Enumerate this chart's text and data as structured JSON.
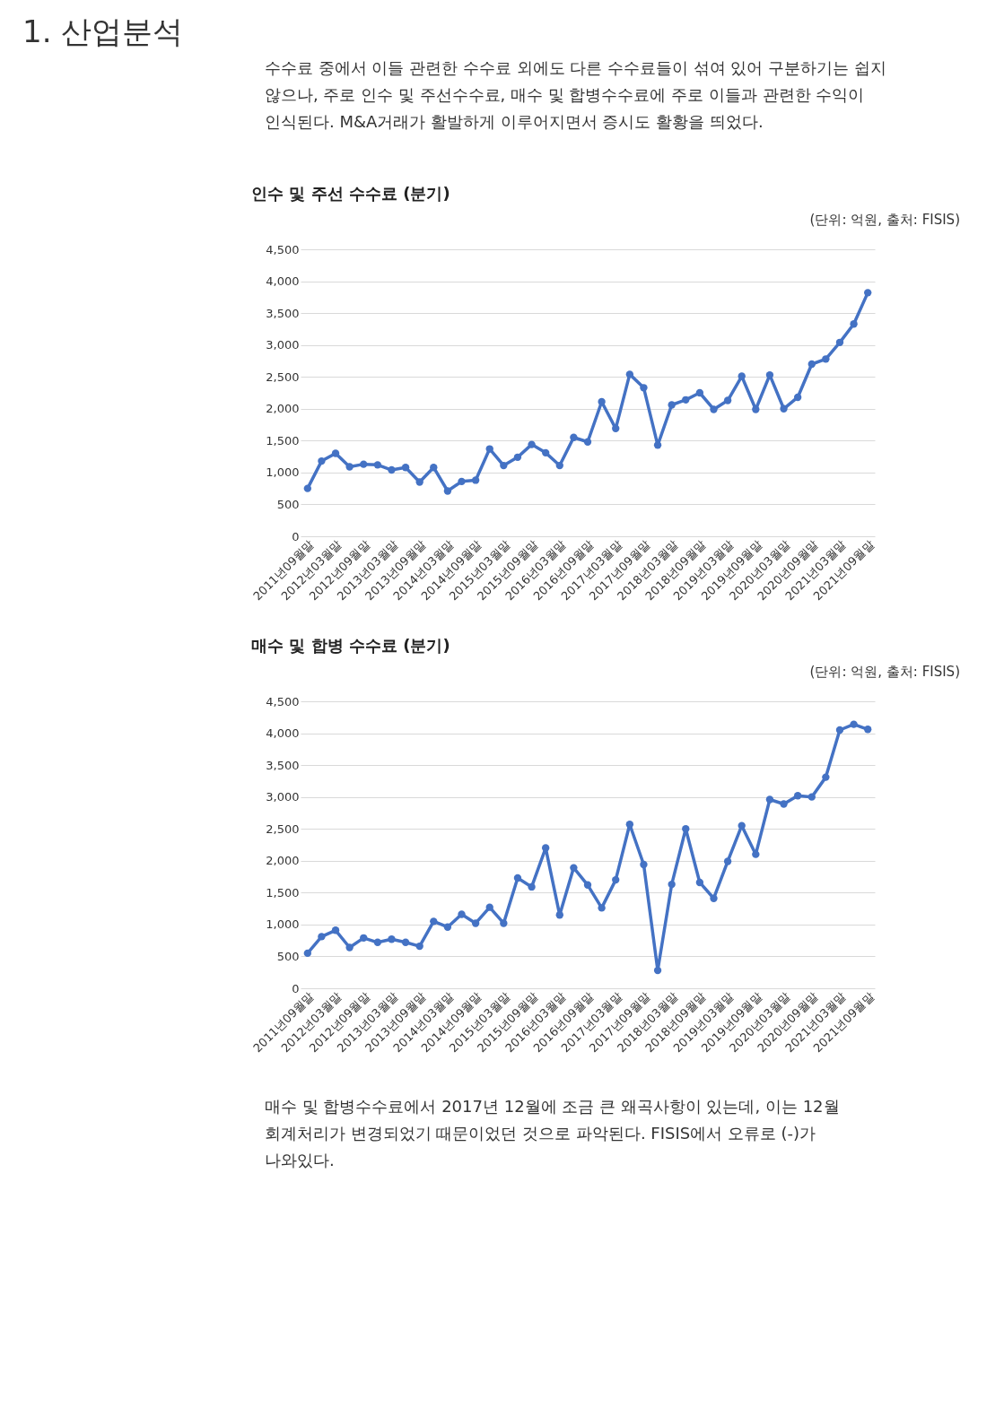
{
  "chart_data": [
    {
      "type": "other",
      "title": "1. 산업분석",
      "annotations": [
        "수수료 중에서 이들 관련한 수수료 외에도 다른 수수료들이 섞여 있어 구분하기는 쉽지 않으나, 주로 인수 및 주선수수료, 매수 및 합병수수료에 주로 이들과 관련한 수익이 인식된다. M&A거래가 활발하게 이루어지면서 증시도 활황을 띄었다."
      ]
    },
    {
      "type": "line",
      "title": "인수 및 주선 수수료 (분기)",
      "annotations": [
        "(단위: 억원, 출처: FISIS)"
      ],
      "categories": [
        "2011년09월말",
        null,
        "2012년03월말",
        null,
        "2012년09월말",
        null,
        "2013년03월말",
        null,
        "2013년09월말",
        null,
        "2014년03월말",
        null,
        "2014년09월말",
        null,
        "2015년03월말",
        null,
        "2015년09월말",
        null,
        "2016년03월말",
        null,
        "2016년09월말",
        null,
        "2017년03월말",
        null,
        "2017년09월말",
        null,
        "2018년03월말",
        null,
        "2018년09월말",
        null,
        "2019년03월말",
        null,
        "2019년09월말",
        null,
        "2020년03월말",
        null,
        "2020년09월말",
        null,
        "2021년03월말",
        null,
        "2021년09월말"
      ],
      "series": [
        {
          "color": "#4472c4",
          "values": [
            750,
            1180,
            1300,
            1090,
            1130,
            1120,
            1040,
            1080,
            850,
            1080,
            710,
            860,
            880,
            1370,
            1110,
            1240,
            1440,
            1310,
            1110,
            1550,
            1480,
            2110,
            1690,
            2540,
            2330,
            1430,
            2060,
            2140,
            2250,
            1990,
            2130,
            2510,
            1990,
            2530,
            2000,
            2180,
            2700,
            2780,
            3040,
            3330,
            3820
          ]
        }
      ],
      "ylim": [
        0,
        4500
      ],
      "yticks": [
        0,
        500,
        {
          "value": 1000,
          "label": "1,000"
        },
        {
          "value": 1500,
          "label": "1,500"
        },
        {
          "value": 2000,
          "label": "2,000"
        },
        {
          "value": 2500,
          "label": "2,500"
        },
        {
          "value": 3000,
          "label": "3,000"
        },
        {
          "value": 3500,
          "label": "3,500"
        },
        {
          "value": 4000,
          "label": "4,000"
        },
        {
          "value": 4500,
          "label": "4,500"
        }
      ],
      "grid": "y",
      "marker": "circle",
      "line_style": "solid"
    },
    {
      "type": "line",
      "title": "매수 및 합병 수수료 (분기)",
      "annotations": [
        "(단위: 억원, 출처: FISIS)"
      ],
      "categories": [
        "2011년09월말",
        null,
        "2012년03월말",
        null,
        "2012년09월말",
        null,
        "2013년03월말",
        null,
        "2013년09월말",
        null,
        "2014년03월말",
        null,
        "2014년09월말",
        null,
        "2015년03월말",
        null,
        "2015년09월말",
        null,
        "2016년03월말",
        null,
        "2016년09월말",
        null,
        "2017년03월말",
        null,
        "2017년09월말",
        null,
        "2018년03월말",
        null,
        "2018년09월말",
        null,
        "2019년03월말",
        null,
        "2019년09월말",
        null,
        "2020년03월말",
        null,
        "2020년09월말",
        null,
        "2021년03월말",
        null,
        "2021년09월말"
      ],
      "series": [
        {
          "color": "#4472c4",
          "values": [
            550,
            810,
            910,
            640,
            790,
            720,
            770,
            720,
            660,
            1050,
            960,
            1160,
            1020,
            1270,
            1020,
            1730,
            1590,
            2200,
            1150,
            1890,
            1620,
            1260,
            1700,
            2570,
            1940,
            280,
            1630,
            2500,
            1660,
            1410,
            1990,
            2550,
            2100,
            2960,
            2890,
            3020,
            3000,
            3310,
            4050,
            4140,
            4060
          ]
        }
      ],
      "ylim": [
        0,
        4500
      ],
      "yticks": [
        0,
        500,
        {
          "value": 1000,
          "label": "1,000"
        },
        {
          "value": 1500,
          "label": "1,500"
        },
        {
          "value": 2000,
          "label": "2,000"
        },
        {
          "value": 2500,
          "label": "2,500"
        },
        {
          "value": 3000,
          "label": "3,000"
        },
        {
          "value": 3500,
          "label": "3,500"
        },
        {
          "value": 4000,
          "label": "4,000"
        },
        {
          "value": 4500,
          "label": "4,500"
        }
      ],
      "grid": "y",
      "marker": "circle",
      "line_style": "solid"
    },
    {
      "type": "other",
      "annotations": [
        "매수 및 합병수수료에서 2017년 12월에 조금 큰 왜곡사항이 있는데, 이는 12월 회계처리가 변경되었기 때문이었던 것으로 파악된다. FISIS에서 오류로 (-)가 나와있다."
      ]
    }
  ]
}
